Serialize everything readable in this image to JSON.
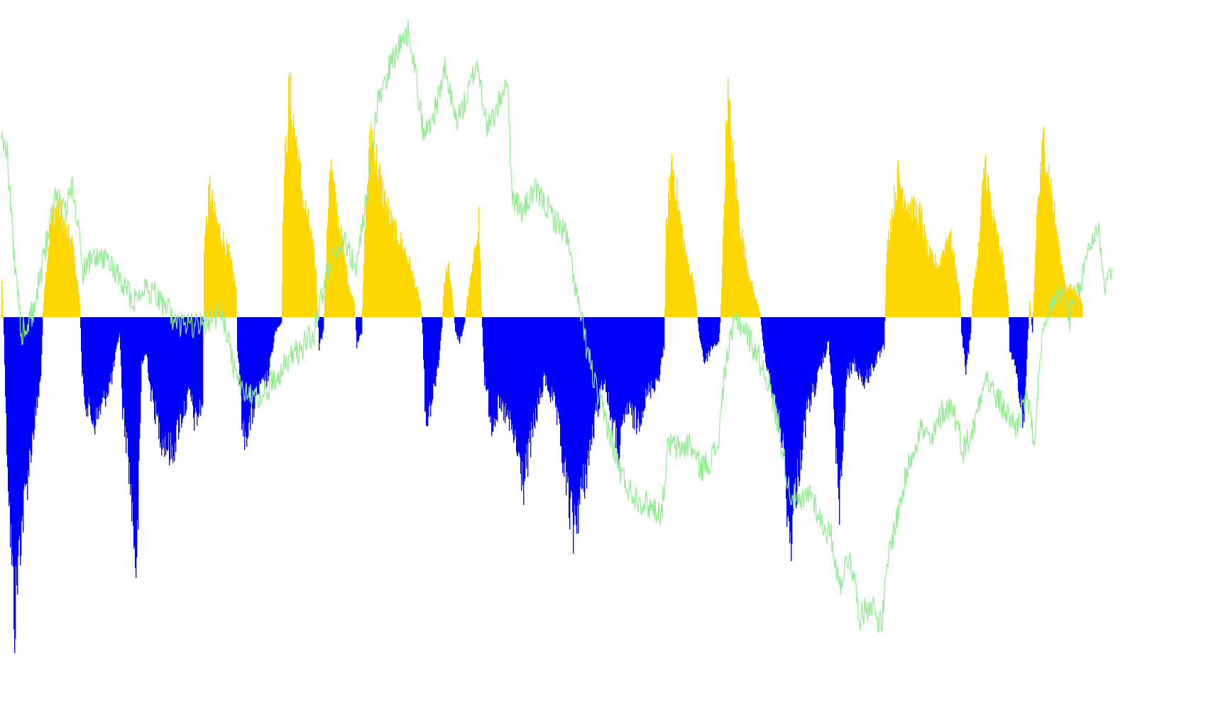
{
  "chart_data": {
    "type": "bar",
    "title": "",
    "xlabel": "",
    "ylabel": "",
    "ylim": [
      -1.0,
      1.0
    ],
    "grid": false,
    "legend": "none",
    "colors": {
      "positive_bar": "#FFD700",
      "negative_bar": "#0000FF",
      "line": "#90EE90",
      "background": "#FFFFFF"
    },
    "series": [
      {
        "type": "histogram",
        "keypoints": [
          [
            0,
            0.12
          ],
          [
            3,
            -0.05
          ],
          [
            6,
            -0.35
          ],
          [
            12,
            -0.7
          ],
          [
            18,
            -1.0
          ],
          [
            25,
            -0.75
          ],
          [
            40,
            -0.45
          ],
          [
            55,
            -0.2
          ],
          [
            58,
            0.02
          ],
          [
            60,
            0.1
          ],
          [
            70,
            0.35
          ],
          [
            80,
            0.4
          ],
          [
            90,
            0.3
          ],
          [
            100,
            0.25
          ],
          [
            110,
            0.05
          ],
          [
            113,
            -0.2
          ],
          [
            118,
            -0.28
          ],
          [
            130,
            -0.35
          ],
          [
            140,
            -0.3
          ],
          [
            155,
            -0.2
          ],
          [
            166,
            -0.05
          ],
          [
            170,
            -0.3
          ],
          [
            178,
            -0.45
          ],
          [
            190,
            -0.85
          ],
          [
            197,
            -0.15
          ],
          [
            204,
            -0.12
          ],
          [
            210,
            -0.25
          ],
          [
            225,
            -0.4
          ],
          [
            240,
            -0.45
          ],
          [
            250,
            -0.35
          ],
          [
            265,
            -0.25
          ],
          [
            272,
            -0.35
          ],
          [
            283,
            -0.28
          ],
          [
            285,
            0.25
          ],
          [
            293,
            0.45
          ],
          [
            300,
            0.35
          ],
          [
            310,
            0.28
          ],
          [
            320,
            0.22
          ],
          [
            330,
            0.1
          ],
          [
            332,
            -0.1
          ],
          [
            340,
            -0.4
          ],
          [
            350,
            -0.35
          ],
          [
            360,
            -0.25
          ],
          [
            375,
            -0.2
          ],
          [
            385,
            -0.05
          ],
          [
            394,
            -0.02
          ],
          [
            397,
            0.45
          ],
          [
            405,
            0.78
          ],
          [
            415,
            0.6
          ],
          [
            425,
            0.4
          ],
          [
            435,
            0.3
          ],
          [
            443,
            0.15
          ],
          [
            447,
            -0.1
          ],
          [
            453,
            -0.05
          ],
          [
            457,
            0.2
          ],
          [
            462,
            0.55
          ],
          [
            470,
            0.4
          ],
          [
            480,
            0.25
          ],
          [
            490,
            0.1
          ],
          [
            497,
            0.05
          ],
          [
            500,
            -0.1
          ],
          [
            507,
            -0.05
          ],
          [
            512,
            0.35
          ],
          [
            520,
            0.65
          ],
          [
            535,
            0.45
          ],
          [
            550,
            0.32
          ],
          [
            565,
            0.25
          ],
          [
            575,
            0.18
          ],
          [
            590,
            0.05
          ],
          [
            593,
            -0.05
          ],
          [
            597,
            -0.35
          ],
          [
            605,
            -0.28
          ],
          [
            615,
            -0.15
          ],
          [
            620,
            -0.03
          ],
          [
            623,
            0.12
          ],
          [
            630,
            0.18
          ],
          [
            636,
            0.04
          ],
          [
            639,
            -0.05
          ],
          [
            645,
            -0.08
          ],
          [
            652,
            -0.02
          ],
          [
            655,
            0.05
          ],
          [
            665,
            0.2
          ],
          [
            672,
            0.35
          ],
          [
            676,
            0.02
          ],
          [
            680,
            -0.2
          ],
          [
            690,
            -0.35
          ],
          [
            700,
            -0.3
          ],
          [
            710,
            -0.32
          ],
          [
            722,
            -0.4
          ],
          [
            735,
            -0.55
          ],
          [
            750,
            -0.35
          ],
          [
            765,
            -0.2
          ],
          [
            780,
            -0.3
          ],
          [
            795,
            -0.55
          ],
          [
            805,
            -0.7
          ],
          [
            820,
            -0.55
          ],
          [
            835,
            -0.35
          ],
          [
            848,
            -0.2
          ],
          [
            860,
            -0.35
          ],
          [
            870,
            -0.45
          ],
          [
            880,
            -0.3
          ],
          [
            895,
            -0.35
          ],
          [
            910,
            -0.25
          ],
          [
            925,
            -0.2
          ],
          [
            933,
            -0.1
          ],
          [
            936,
            0.3
          ],
          [
            944,
            0.55
          ],
          [
            955,
            0.35
          ],
          [
            965,
            0.2
          ],
          [
            975,
            0.12
          ],
          [
            979,
            0.03
          ],
          [
            982,
            -0.05
          ],
          [
            990,
            -0.15
          ],
          [
            1000,
            -0.1
          ],
          [
            1010,
            -0.08
          ],
          [
            1012,
            -0.02
          ],
          [
            1016,
            0.25
          ],
          [
            1022,
            0.78
          ],
          [
            1030,
            0.55
          ],
          [
            1040,
            0.32
          ],
          [
            1050,
            0.18
          ],
          [
            1060,
            0.08
          ],
          [
            1068,
            0.02
          ],
          [
            1072,
            -0.08
          ],
          [
            1085,
            -0.25
          ],
          [
            1100,
            -0.4
          ],
          [
            1110,
            -0.75
          ],
          [
            1120,
            -0.55
          ],
          [
            1135,
            -0.3
          ],
          [
            1150,
            -0.2
          ],
          [
            1165,
            -0.08
          ],
          [
            1172,
            -0.3
          ],
          [
            1180,
            -0.65
          ],
          [
            1190,
            -0.2
          ],
          [
            1200,
            -0.15
          ],
          [
            1215,
            -0.22
          ],
          [
            1230,
            -0.15
          ],
          [
            1243,
            -0.1
          ],
          [
            1247,
            0.25
          ],
          [
            1262,
            0.48
          ],
          [
            1280,
            0.38
          ],
          [
            1295,
            0.35
          ],
          [
            1305,
            0.22
          ],
          [
            1320,
            0.18
          ],
          [
            1335,
            0.3
          ],
          [
            1345,
            0.15
          ],
          [
            1350,
            0.08
          ],
          [
            1352,
            -0.05
          ],
          [
            1358,
            -0.18
          ],
          [
            1365,
            -0.05
          ],
          [
            1368,
            0.1
          ],
          [
            1375,
            0.2
          ],
          [
            1385,
            0.55
          ],
          [
            1395,
            0.35
          ],
          [
            1410,
            0.2
          ],
          [
            1418,
            0.05
          ],
          [
            1420,
            -0.1
          ],
          [
            1430,
            -0.2
          ],
          [
            1440,
            -0.35
          ],
          [
            1445,
            -0.08
          ],
          [
            1448,
            0.05
          ],
          [
            1452,
            -0.05
          ],
          [
            1458,
            0.35
          ],
          [
            1468,
            0.62
          ],
          [
            1478,
            0.45
          ],
          [
            1490,
            0.22
          ],
          [
            1500,
            0.1
          ],
          [
            1512,
            0.1
          ],
          [
            1522,
            0.05
          ]
        ]
      },
      {
        "type": "line",
        "keypoints": [
          [
            0,
            0.58
          ],
          [
            8,
            0.55
          ],
          [
            18,
            0.2
          ],
          [
            28,
            -0.05
          ],
          [
            45,
            0.02
          ],
          [
            60,
            0.2
          ],
          [
            75,
            0.4
          ],
          [
            90,
            0.35
          ],
          [
            100,
            0.45
          ],
          [
            115,
            0.15
          ],
          [
            130,
            0.2
          ],
          [
            150,
            0.18
          ],
          [
            170,
            0.12
          ],
          [
            185,
            0.05
          ],
          [
            200,
            0.1
          ],
          [
            215,
            0.08
          ],
          [
            235,
            0.02
          ],
          [
            250,
            -0.02
          ],
          [
            270,
            -0.03
          ],
          [
            290,
            -0.02
          ],
          [
            310,
            0.02
          ],
          [
            330,
            -0.18
          ],
          [
            345,
            -0.25
          ],
          [
            365,
            -0.25
          ],
          [
            385,
            -0.2
          ],
          [
            400,
            -0.15
          ],
          [
            420,
            -0.1
          ],
          [
            440,
            -0.05
          ],
          [
            455,
            0.1
          ],
          [
            470,
            0.22
          ],
          [
            485,
            0.26
          ],
          [
            500,
            0.15
          ],
          [
            515,
            0.4
          ],
          [
            530,
            0.7
          ],
          [
            545,
            0.82
          ],
          [
            560,
            0.9
          ],
          [
            575,
            0.95
          ],
          [
            585,
            0.78
          ],
          [
            595,
            0.6
          ],
          [
            610,
            0.68
          ],
          [
            625,
            0.82
          ],
          [
            640,
            0.65
          ],
          [
            655,
            0.72
          ],
          [
            670,
            0.85
          ],
          [
            685,
            0.62
          ],
          [
            700,
            0.7
          ],
          [
            712,
            0.8
          ],
          [
            720,
            0.4
          ],
          [
            735,
            0.35
          ],
          [
            750,
            0.42
          ],
          [
            765,
            0.38
          ],
          [
            780,
            0.32
          ],
          [
            795,
            0.28
          ],
          [
            805,
            0.15
          ],
          [
            812,
            0.05
          ],
          [
            825,
            -0.1
          ],
          [
            840,
            -0.25
          ],
          [
            855,
            -0.35
          ],
          [
            870,
            -0.48
          ],
          [
            885,
            -0.55
          ],
          [
            900,
            -0.58
          ],
          [
            915,
            -0.6
          ],
          [
            930,
            -0.62
          ],
          [
            940,
            -0.4
          ],
          [
            955,
            -0.42
          ],
          [
            970,
            -0.4
          ],
          [
            985,
            -0.48
          ],
          [
            1000,
            -0.45
          ],
          [
            1010,
            -0.4
          ],
          [
            1020,
            -0.15
          ],
          [
            1035,
            0.0
          ],
          [
            1050,
            -0.05
          ],
          [
            1065,
            -0.12
          ],
          [
            1080,
            -0.2
          ],
          [
            1095,
            -0.35
          ],
          [
            1110,
            -0.55
          ],
          [
            1125,
            -0.6
          ],
          [
            1140,
            -0.55
          ],
          [
            1155,
            -0.65
          ],
          [
            1170,
            -0.7
          ],
          [
            1180,
            -0.85
          ],
          [
            1195,
            -0.75
          ],
          [
            1210,
            -0.95
          ],
          [
            1225,
            -0.9
          ],
          [
            1240,
            -0.98
          ],
          [
            1250,
            -0.75
          ],
          [
            1265,
            -0.6
          ],
          [
            1280,
            -0.45
          ],
          [
            1295,
            -0.35
          ],
          [
            1310,
            -0.4
          ],
          [
            1325,
            -0.3
          ],
          [
            1340,
            -0.28
          ],
          [
            1355,
            -0.42
          ],
          [
            1370,
            -0.35
          ],
          [
            1385,
            -0.18
          ],
          [
            1400,
            -0.25
          ],
          [
            1415,
            -0.3
          ],
          [
            1430,
            -0.35
          ],
          [
            1445,
            -0.25
          ],
          [
            1455,
            -0.4
          ],
          [
            1465,
            -0.1
          ],
          [
            1480,
            0.05
          ],
          [
            1495,
            0.08
          ],
          [
            1505,
            0.0
          ],
          [
            1520,
            0.1
          ],
          [
            1530,
            0.22
          ],
          [
            1545,
            0.3
          ],
          [
            1555,
            0.1
          ],
          [
            1565,
            0.18
          ]
        ]
      }
    ]
  }
}
